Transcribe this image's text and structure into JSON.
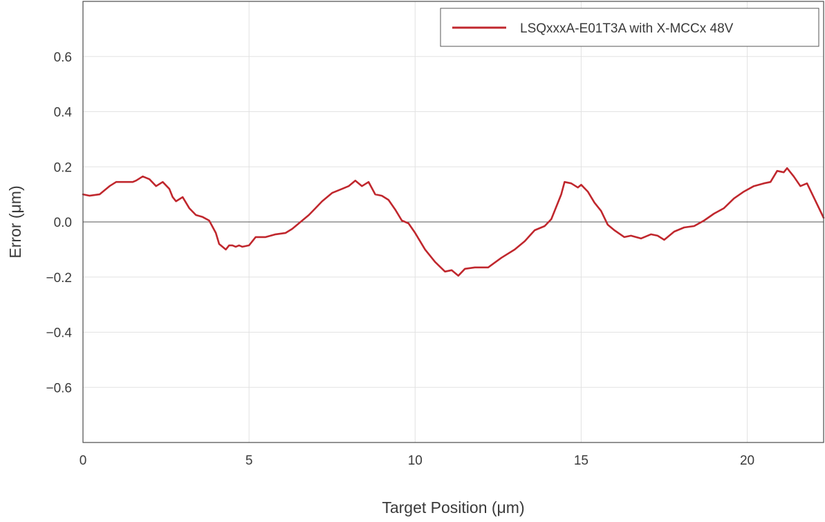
{
  "chart_data": {
    "type": "line",
    "xlabel": "Target Position (μm)",
    "ylabel": "Error (μm)",
    "xlim": [
      0,
      22.3
    ],
    "ylim": [
      -0.8,
      0.8
    ],
    "xticks": [
      0,
      5,
      10,
      15,
      20
    ],
    "yticks": [
      -0.6,
      -0.4,
      -0.2,
      0.0,
      0.2,
      0.4,
      0.6
    ],
    "ytick_labels": [
      "−0.6",
      "−0.4",
      "−0.2",
      "0.0",
      "0.2",
      "0.4",
      "0.6"
    ],
    "grid": true,
    "zero_line": true,
    "legend_position": "top-right",
    "series": [
      {
        "name": "LSQxxxA-E01T3A with X-MCCx 48V",
        "color": "#c0272d",
        "x": [
          0,
          0.2,
          0.5,
          0.8,
          1.0,
          1.2,
          1.5,
          1.6,
          1.8,
          2.0,
          2.2,
          2.4,
          2.6,
          2.7,
          2.8,
          3.0,
          3.2,
          3.4,
          3.6,
          3.8,
          4.0,
          4.1,
          4.2,
          4.3,
          4.4,
          4.5,
          4.6,
          4.7,
          4.8,
          5.0,
          5.2,
          5.5,
          5.8,
          6.1,
          6.3,
          6.6,
          6.8,
          7.0,
          7.2,
          7.5,
          7.8,
          8.0,
          8.2,
          8.4,
          8.6,
          8.8,
          9.0,
          9.2,
          9.4,
          9.6,
          9.8,
          10.0,
          10.3,
          10.6,
          10.9,
          11.1,
          11.2,
          11.3,
          11.5,
          11.8,
          12.2,
          12.6,
          13.0,
          13.3,
          13.6,
          13.9,
          14.1,
          14.3,
          14.4,
          14.5,
          14.7,
          14.9,
          15.0,
          15.2,
          15.4,
          15.6,
          15.8,
          16.0,
          16.3,
          16.5,
          16.8,
          17.1,
          17.3,
          17.5,
          17.8,
          18.1,
          18.4,
          18.7,
          19.0,
          19.3,
          19.6,
          19.9,
          20.2,
          20.5,
          20.7,
          20.9,
          21.1,
          21.2,
          21.4,
          21.6,
          21.8,
          22.0,
          22.3
        ],
        "values": [
          0.1,
          0.095,
          0.1,
          0.13,
          0.145,
          0.145,
          0.145,
          0.15,
          0.165,
          0.155,
          0.13,
          0.145,
          0.12,
          0.09,
          0.075,
          0.09,
          0.05,
          0.025,
          0.018,
          0.005,
          -0.04,
          -0.08,
          -0.09,
          -0.1,
          -0.085,
          -0.085,
          -0.09,
          -0.085,
          -0.09,
          -0.085,
          -0.055,
          -0.055,
          -0.045,
          -0.04,
          -0.025,
          0.005,
          0.025,
          0.05,
          0.075,
          0.105,
          0.12,
          0.13,
          0.15,
          0.13,
          0.145,
          0.1,
          0.095,
          0.08,
          0.045,
          0.005,
          -0.005,
          -0.04,
          -0.1,
          -0.145,
          -0.18,
          -0.175,
          -0.185,
          -0.195,
          -0.17,
          -0.165,
          -0.165,
          -0.13,
          -0.1,
          -0.07,
          -0.03,
          -0.015,
          0.01,
          0.07,
          0.1,
          0.145,
          0.14,
          0.125,
          0.135,
          0.11,
          0.07,
          0.04,
          -0.01,
          -0.03,
          -0.055,
          -0.05,
          -0.06,
          -0.045,
          -0.05,
          -0.065,
          -0.035,
          -0.02,
          -0.015,
          0.005,
          0.03,
          0.05,
          0.085,
          0.11,
          0.13,
          0.14,
          0.145,
          0.185,
          0.18,
          0.195,
          0.165,
          0.13,
          0.14,
          0.09,
          0.015
        ]
      }
    ]
  }
}
